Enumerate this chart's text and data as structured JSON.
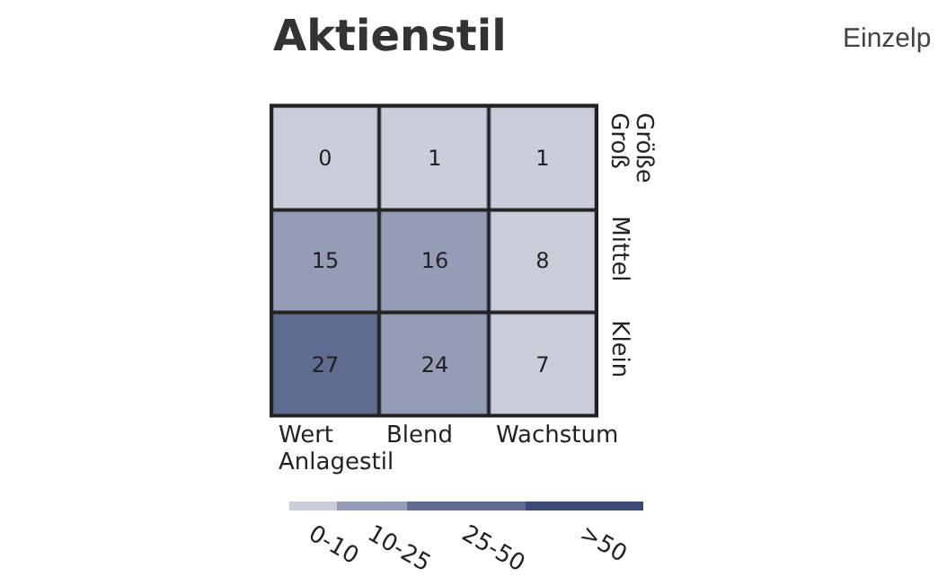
{
  "chart_data": {
    "type": "heatmap",
    "title": "Aktienstil",
    "annotations": [
      "Einzelp"
    ],
    "xlabel": "Anlagestil",
    "ylabel": "Größe",
    "categories": [
      "Wert",
      "Blend",
      "Wachstum"
    ],
    "y_categories": [
      "Groß",
      "Mittel",
      "Klein"
    ],
    "cells": [
      [
        0,
        1,
        1
      ],
      [
        15,
        16,
        8
      ],
      [
        27,
        24,
        7
      ]
    ],
    "data_labels": true,
    "clim": [
      0,
      75
    ],
    "cticks": [
      {
        "value": 5,
        "label": "0-10"
      },
      {
        "value": 17.5,
        "label": "10-25"
      },
      {
        "value": 37.5,
        "label": "25-50"
      },
      {
        "value": 62.5,
        "label": ">50"
      }
    ],
    "colors": [
      "#c9cdda",
      "#959cb6",
      "#5f6b8f",
      "#3b4a77"
    ]
  }
}
